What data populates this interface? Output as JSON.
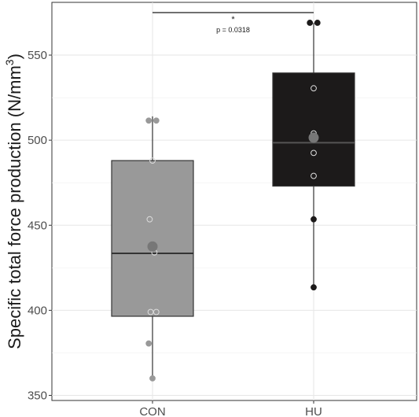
{
  "chart_data": {
    "type": "box",
    "title": "",
    "xlabel": "",
    "ylabel": "Specific total force production (N/mm",
    "ylabel_sup": "3",
    "ylabel_close": ")",
    "ylim": [
      347,
      581
    ],
    "yticks": [
      350,
      400,
      450,
      500,
      550
    ],
    "grid": true,
    "categories": [
      "CON",
      "HU"
    ],
    "groups": [
      {
        "name": "CON",
        "fill": "#999999",
        "stroke": "#333333",
        "q1": 396.5,
        "median": 433.5,
        "q3": 488.0,
        "whisker_low": 360.0,
        "whisker_high": 514.0,
        "mean": 437.5,
        "points": [
          360.0,
          380.5,
          399.0,
          399.0,
          434.0,
          453.5,
          488.0,
          511.5,
          511.5
        ],
        "point_color": "#999999"
      },
      {
        "name": "HU",
        "fill": "#1c1a1a",
        "stroke": "#333333",
        "q1": 473.0,
        "median": 498.5,
        "q3": 539.5,
        "whisker_low": 413.5,
        "whisker_high": 569.0,
        "mean": 501.5,
        "points": [
          413.5,
          453.5,
          479.0,
          492.5,
          504.0,
          530.5,
          569.0,
          569.0
        ],
        "point_color": "#1c1a1a"
      }
    ],
    "significance": {
      "from": "CON",
      "to": "HU",
      "y": 575,
      "star": "*",
      "label": "p = 0.0318"
    }
  }
}
